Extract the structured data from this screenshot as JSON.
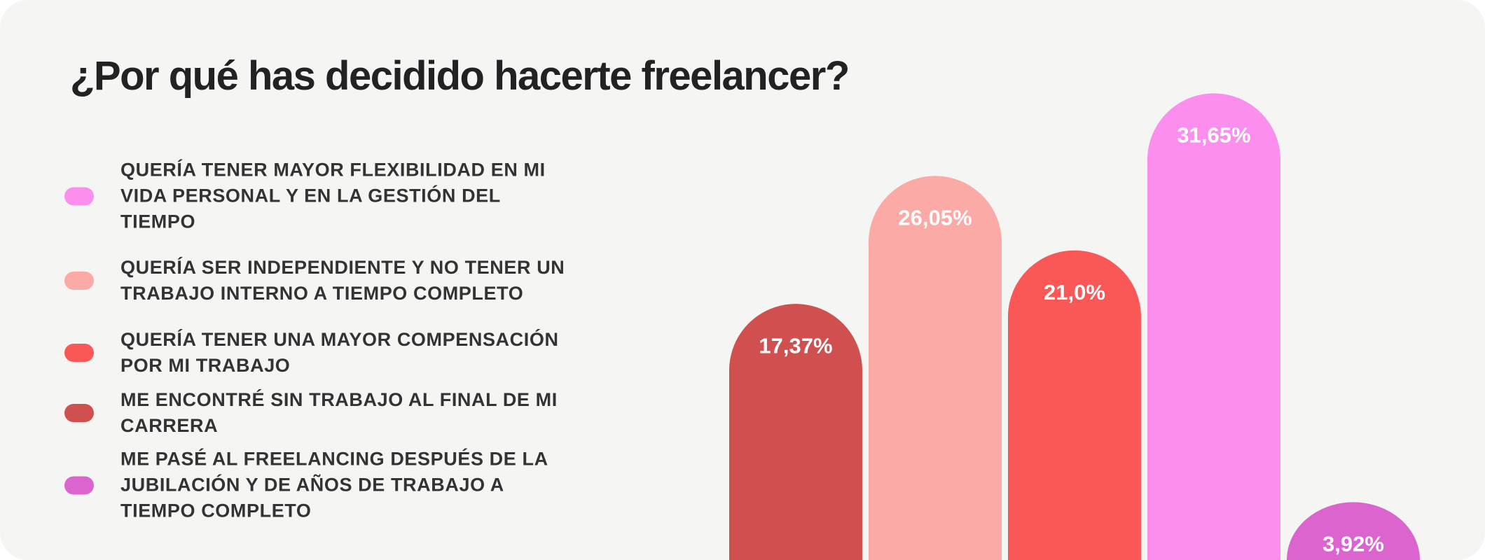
{
  "chart_data": {
    "type": "bar",
    "title": "¿Por qué has decidido hacerte freelancer?",
    "categories": [
      null,
      null,
      null,
      null,
      null
    ],
    "series": [
      {
        "name": "QUERÍA TENER MAYOR FLEXIBILIDAD EN MI VIDA PERSONAL Y EN LA GESTIÓN DEL TIEMPO",
        "color": "#fc8fee",
        "values": [
          null,
          null,
          null,
          31.65,
          null
        ],
        "value_labels": [
          null,
          null,
          null,
          "31,65%",
          null
        ]
      },
      {
        "name": "QUERÍA SER INDEPENDIENTE Y NO TENER UN TRABAJO INTERNO A TIEMPO COMPLETO",
        "color": "#fcaaa6",
        "values": [
          null,
          26.05,
          null,
          null,
          null
        ],
        "value_labels": [
          null,
          "26,05%",
          null,
          null,
          null
        ]
      },
      {
        "name": "QUERÍA TENER UNA MAYOR COMPENSACIÓN POR MI TRABAJO",
        "color": "#fa5757",
        "values": [
          null,
          null,
          21.0,
          null,
          null
        ],
        "value_labels": [
          null,
          null,
          "21,0%",
          null,
          null
        ]
      },
      {
        "name": "ME ENCONTRÉ SIN TRABAJO AL FINAL DE MI CARRERA",
        "color": "#d04f4f",
        "values": [
          17.37,
          null,
          null,
          null,
          null
        ],
        "value_labels": [
          "17,37%",
          null,
          null,
          null,
          null
        ]
      },
      {
        "name": "ME PASÉ AL FREELANCING DESPUÉS DE LA JUBILACIÓN Y DE AÑOS DE TRABAJO A TIEMPO COMPLETO",
        "color": "#dc64cf",
        "values": [
          null,
          null,
          null,
          null,
          3.92
        ],
        "value_labels": [
          null,
          null,
          null,
          null,
          "3,92%"
        ]
      }
    ],
    "ylim": [
      0,
      32
    ],
    "legend": "left"
  }
}
